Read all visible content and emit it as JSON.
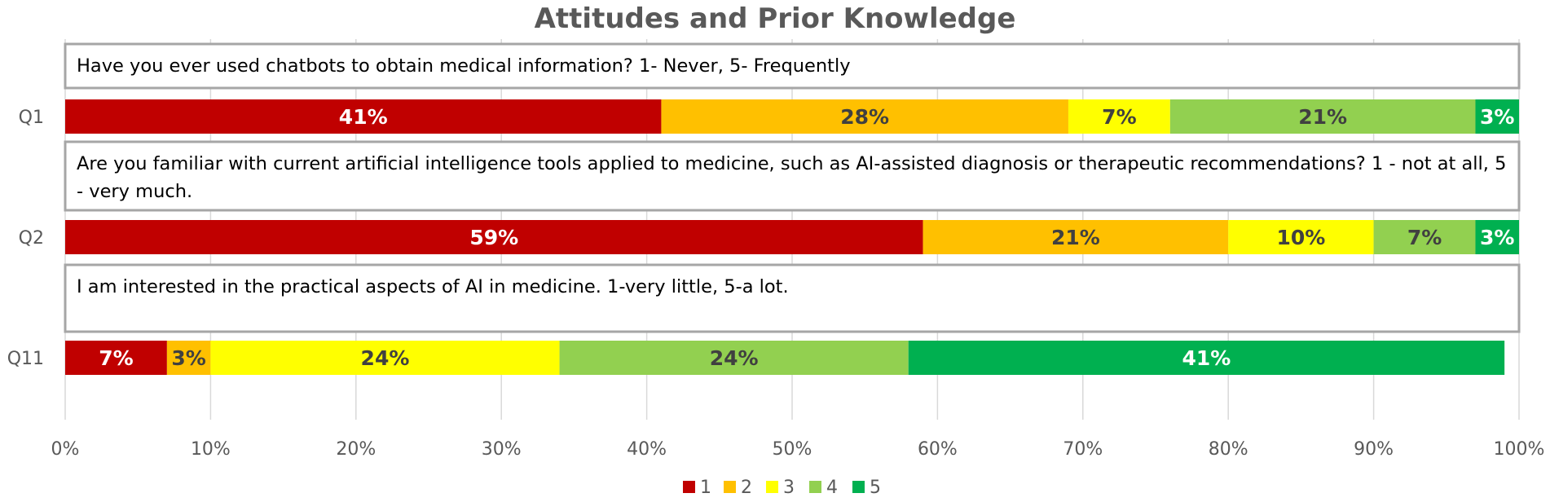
{
  "chart_data": {
    "type": "bar",
    "orientation": "horizontal-stacked-100",
    "title": "Attitudes and Prior Knowledge",
    "categories": [
      "Q1",
      "Q2",
      "Q11"
    ],
    "questions": [
      "Have you ever used chatbots to obtain medical information? 1- Never, 5- Frequently",
      "Are you familiar with current artificial intelligence tools applied to medicine, such as AI-assisted diagnosis or therapeutic recommendations? 1 - not at all, 5 - very much.",
      "I am interested in the practical aspects of AI in medicine. 1-very little, 5-a lot."
    ],
    "series": [
      {
        "name": "1",
        "color": "#C00000",
        "label_color": "#FFFFFF",
        "values": [
          41,
          59,
          7
        ]
      },
      {
        "name": "2",
        "color": "#FFC000",
        "label_color": "#404040",
        "values": [
          28,
          21,
          3
        ]
      },
      {
        "name": "3",
        "color": "#FFFF00",
        "label_color": "#404040",
        "values": [
          7,
          10,
          24
        ]
      },
      {
        "name": "4",
        "color": "#92D050",
        "label_color": "#404040",
        "values": [
          21,
          7,
          24
        ]
      },
      {
        "name": "5",
        "color": "#00B050",
        "label_color": "#FFFFFF",
        "values": [
          3,
          3,
          41
        ]
      }
    ],
    "data_labels": [
      [
        "41%",
        "59%",
        "7%"
      ],
      [
        "28%",
        "21%",
        "3%"
      ],
      [
        "7%",
        "10%",
        "24%"
      ],
      [
        "21%",
        "7%",
        "24%"
      ],
      [
        "3%",
        "3%",
        "41%"
      ]
    ],
    "xlim": [
      0,
      100
    ],
    "xticks": [
      "0%",
      "10%",
      "20%",
      "30%",
      "40%",
      "50%",
      "60%",
      "70%",
      "80%",
      "90%",
      "100%"
    ],
    "grid": true,
    "legend": "bottom-center",
    "xlabel": "",
    "ylabel": ""
  }
}
